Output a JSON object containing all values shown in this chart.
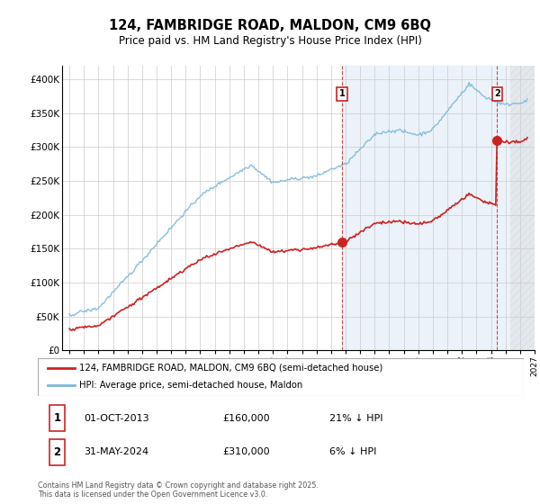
{
  "title": "124, FAMBRIDGE ROAD, MALDON, CM9 6BQ",
  "subtitle": "Price paid vs. HM Land Registry's House Price Index (HPI)",
  "ylim": [
    0,
    420000
  ],
  "yticks": [
    0,
    50000,
    100000,
    150000,
    200000,
    250000,
    300000,
    350000,
    400000
  ],
  "ytick_labels": [
    "£0",
    "£50K",
    "£100K",
    "£150K",
    "£200K",
    "£250K",
    "£300K",
    "£350K",
    "£400K"
  ],
  "hpi_color": "#7ab8d9",
  "price_color": "#cc2222",
  "dashed_color": "#cc2222",
  "point1_year": 2013.75,
  "point1_price": 160000,
  "point2_year": 2024.42,
  "point2_price": 310000,
  "point1_date": "01-OCT-2013",
  "point1_price_str": "£160,000",
  "point1_note": "21% ↓ HPI",
  "point2_date": "31-MAY-2024",
  "point2_price_str": "£310,000",
  "point2_note": "6% ↓ HPI",
  "legend_line1": "124, FAMBRIDGE ROAD, MALDON, CM9 6BQ (semi-detached house)",
  "legend_line2": "HPI: Average price, semi-detached house, Maldon",
  "footnote": "Contains HM Land Registry data © Crown copyright and database right 2025.\nThis data is licensed under the Open Government Licence v3.0.",
  "bg_color": "#ffffff",
  "grid_color": "#cccccc",
  "shade_color": "#deeaf5",
  "hatch_color": "#cccccc"
}
